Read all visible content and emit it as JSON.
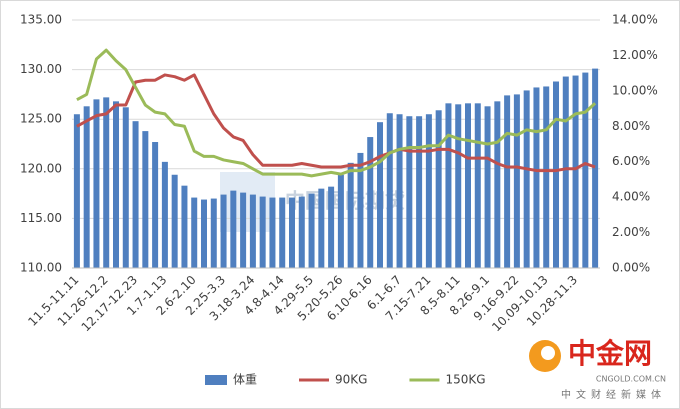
{
  "chart_data": {
    "type": "bar-line",
    "categories": [
      "11.5-11.11",
      null,
      null,
      "11.26-12.2",
      null,
      null,
      "12.17-12.23",
      null,
      null,
      "1.7-1.13",
      null,
      null,
      "2.6-2.10",
      null,
      null,
      "2.25-3.3",
      null,
      null,
      "3.18-3.24",
      null,
      null,
      "4.8-4.14",
      null,
      null,
      "4.29-5.5",
      null,
      null,
      "5.20-5.26",
      null,
      null,
      "6.10-6.16",
      null,
      null,
      "6.1-6.7",
      null,
      null,
      "7.15-7.21",
      null,
      null,
      "8.5-8.11",
      null,
      null,
      "8.26-9.1",
      null,
      null,
      "9.16-9.22",
      null,
      null,
      "10.09-10.13",
      null,
      null,
      "10.28-11.3",
      null,
      null
    ],
    "series": [
      {
        "name": "体重",
        "color": "#4f7fbf",
        "type": "bar",
        "axis": "y",
        "values": [
          125.5,
          126.3,
          127,
          127.2,
          126.8,
          126.2,
          124.8,
          123.8,
          122.7,
          120.7,
          119.4,
          118.3,
          117.1,
          116.9,
          117.0,
          117.4,
          117.8,
          117.6,
          117.4,
          117.2,
          117.1,
          117.1,
          117.1,
          117.2,
          117.5,
          118,
          118.2,
          119.4,
          120.6,
          121.6,
          123.2,
          124.7,
          125.6,
          125.5,
          125.3,
          125.3,
          125.5,
          125.9,
          126.6,
          126.5,
          126.6,
          126.6,
          126.3,
          126.8,
          127.4,
          127.5,
          127.9,
          128.2,
          128.3,
          128.8,
          129.3,
          129.4,
          129.7,
          130.1
        ]
      },
      {
        "name": "90KG",
        "color": "#c0504d",
        "type": "line",
        "axis": "y2",
        "values": [
          8.0,
          8.3,
          8.6,
          8.7,
          9.2,
          9.2,
          10.5,
          10.6,
          10.6,
          10.9,
          10.8,
          10.6,
          10.9,
          9.8,
          8.7,
          7.9,
          7.4,
          7.2,
          6.4,
          5.8,
          5.8,
          5.8,
          5.8,
          5.9,
          5.8,
          5.7,
          5.7,
          5.7,
          5.8,
          5.8,
          6.0,
          6.3,
          6.5,
          6.7,
          6.6,
          6.6,
          6.6,
          6.7,
          6.7,
          6.5,
          6.2,
          6.2,
          6.2,
          5.9,
          5.7,
          5.7,
          5.6,
          5.5,
          5.5,
          5.5,
          5.6,
          5.6,
          5.9,
          5.7
        ]
      },
      {
        "name": "150KG",
        "color": "#9bbb59",
        "type": "line",
        "axis": "y2",
        "values": [
          9.5,
          9.8,
          11.8,
          12.3,
          11.7,
          11.2,
          10.2,
          9.2,
          8.8,
          8.7,
          8.1,
          8.0,
          6.6,
          6.3,
          6.3,
          6.1,
          6.0,
          5.9,
          5.6,
          5.3,
          5.3,
          5.3,
          5.3,
          5.3,
          5.2,
          5.3,
          5.4,
          5.3,
          5.5,
          5.5,
          5.7,
          6.0,
          6.5,
          6.7,
          6.8,
          6.8,
          6.9,
          6.9,
          7.5,
          7.3,
          7.2,
          7.1,
          7.0,
          7.1,
          7.6,
          7.5,
          7.8,
          7.7,
          7.8,
          8.4,
          8.3,
          8.7,
          8.8,
          9.3
        ]
      }
    ],
    "ylim": [
      110,
      135
    ],
    "yticks": [
      {
        "value": 110,
        "label": "110.00"
      },
      {
        "value": 115,
        "label": "115.00"
      },
      {
        "value": 120,
        "label": "120.00"
      },
      {
        "value": 125,
        "label": "125.00"
      },
      {
        "value": 130,
        "label": "130.00"
      },
      {
        "value": 135,
        "label": "135.00"
      }
    ],
    "y2lim": [
      0,
      14
    ],
    "y2ticks": [
      {
        "value": 0,
        "label": "0.00%"
      },
      {
        "value": 2,
        "label": "2.00%"
      },
      {
        "value": 4,
        "label": "4.00%"
      },
      {
        "value": 6,
        "label": "6.00%"
      },
      {
        "value": 8,
        "label": "8.00%"
      },
      {
        "value": 10,
        "label": "10.00%"
      },
      {
        "value": 12,
        "label": "12.00%"
      },
      {
        "value": 14,
        "label": "14.00%"
      }
    ],
    "grid": true,
    "legend": "bottom",
    "annotations": [
      "中国国际期货",
      "中金网",
      "CNGOLD.COM.CN",
      "中文财经新媒体"
    ]
  }
}
